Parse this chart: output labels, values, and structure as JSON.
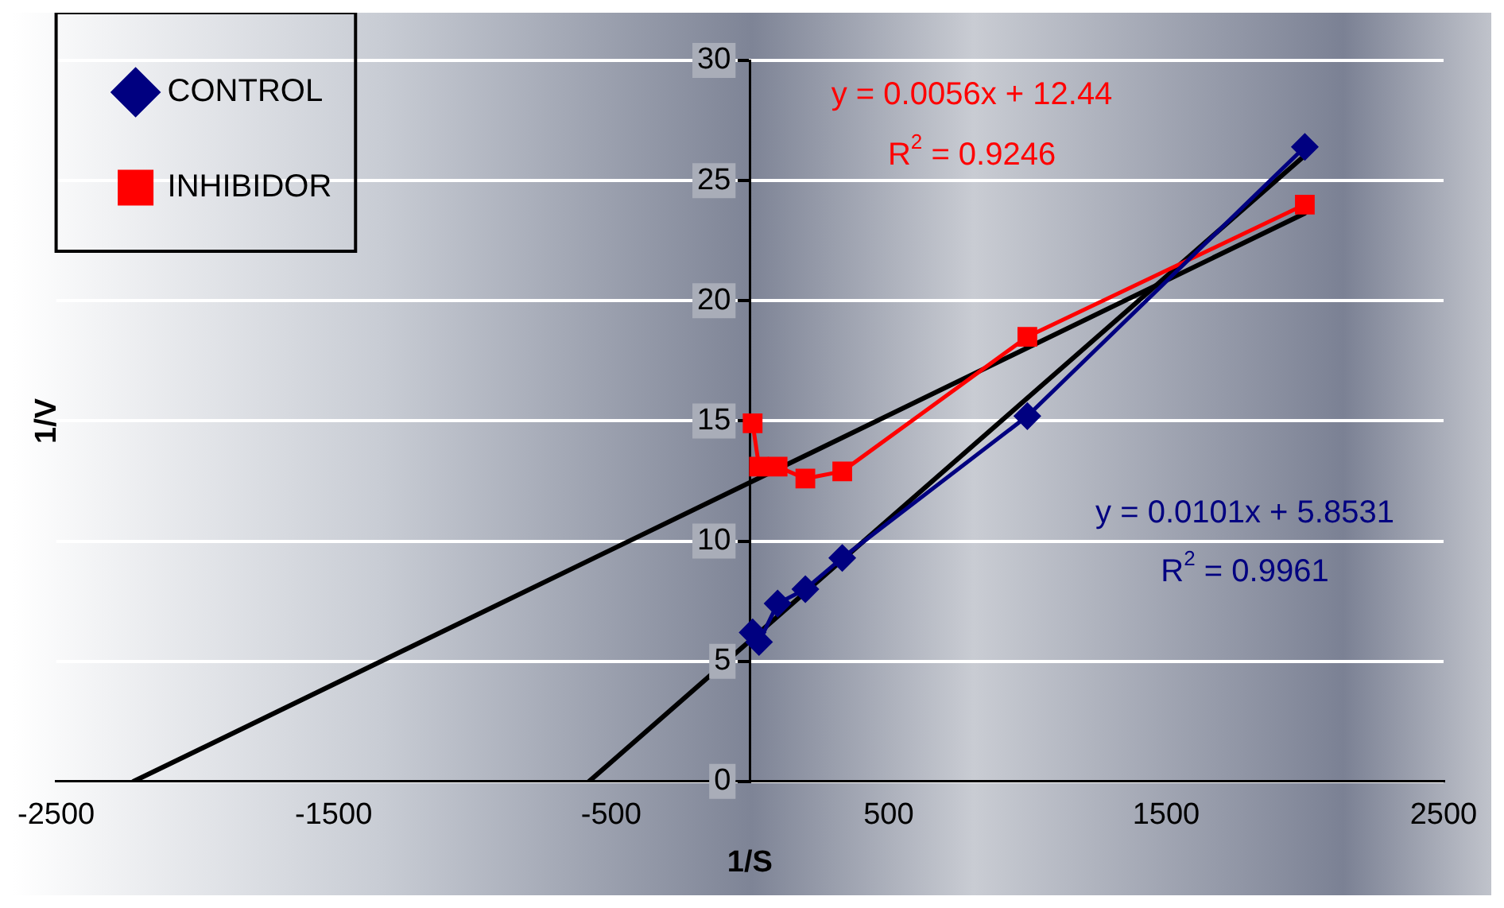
{
  "chart_data": {
    "type": "line",
    "xlabel": "1/S",
    "ylabel": "1/V",
    "xlim": [
      -2500,
      2500
    ],
    "xticks": [
      -2500,
      -1500,
      -500,
      500,
      1500,
      2500
    ],
    "ylim": [
      0,
      30
    ],
    "yticks": [
      0,
      5,
      10,
      15,
      20,
      25,
      30
    ],
    "grid": "y",
    "legend": "top left",
    "series": [
      {
        "name": "CONTROL",
        "color": "#000080",
        "marker": "diamond",
        "x": [
          10,
          33,
          100,
          200,
          333,
          1000,
          2000
        ],
        "values": [
          6.2,
          5.8,
          7.4,
          8.0,
          9.3,
          15.2,
          26.4
        ]
      },
      {
        "name": "INHIBIDOR",
        "color": "#ff0000",
        "marker": "square",
        "x": [
          10,
          33,
          100,
          200,
          333,
          1000,
          2000
        ],
        "values": [
          14.9,
          13.1,
          13.1,
          12.6,
          12.9,
          18.5,
          24.0
        ]
      },
      {
        "type": "line",
        "color": "#000000",
        "marker": "none",
        "x": [
          -579.5,
          2000
        ],
        "values": [
          0,
          26.05
        ]
      },
      {
        "type": "line",
        "color": "#000000",
        "marker": "none",
        "x": [
          -2221,
          2000
        ],
        "values": [
          0,
          23.64
        ]
      }
    ],
    "annotations": [
      "y = 0.0056x + 12.44",
      "R$^{2}$ = 0.9246",
      "y = 0.0101x + 5.8531",
      "R$^{2}$ = 0.9961"
    ]
  }
}
